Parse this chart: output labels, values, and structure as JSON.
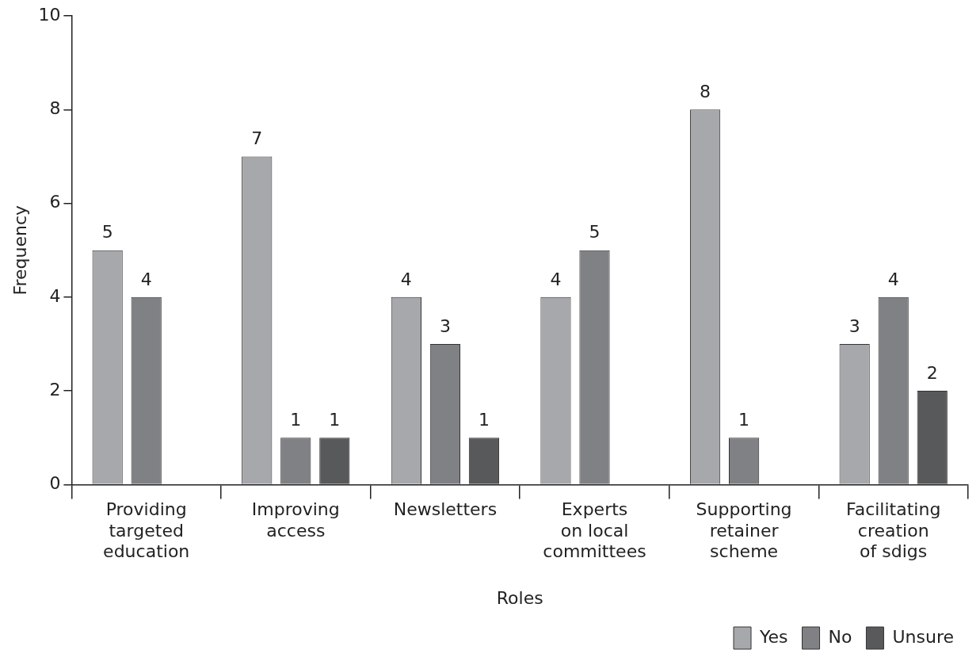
{
  "chart_data": {
    "type": "bar",
    "xlabel": "Roles",
    "ylabel": "Frequency",
    "categories": [
      "Providing\ntargeted\neducation",
      "Improving\naccess",
      "Newsletters",
      "Experts\non local\ncommittees",
      "Supporting\nretainer\nscheme",
      "Facilitating\ncreation\nof sdigs"
    ],
    "series": [
      {
        "name": "Yes",
        "color": "#a7a8ab",
        "values": [
          5,
          7,
          4,
          4,
          8,
          3
        ]
      },
      {
        "name": "No",
        "color": "#808185",
        "values": [
          4,
          1,
          3,
          5,
          1,
          4
        ]
      },
      {
        "name": "Unsure",
        "color": "#58595b",
        "values": [
          null,
          1,
          1,
          null,
          null,
          2
        ]
      }
    ],
    "ylim": [
      0,
      10
    ],
    "yticks": [
      0,
      2,
      4,
      6,
      8,
      10
    ],
    "grid": false,
    "legend": "bottom right",
    "data_labels": true
  }
}
